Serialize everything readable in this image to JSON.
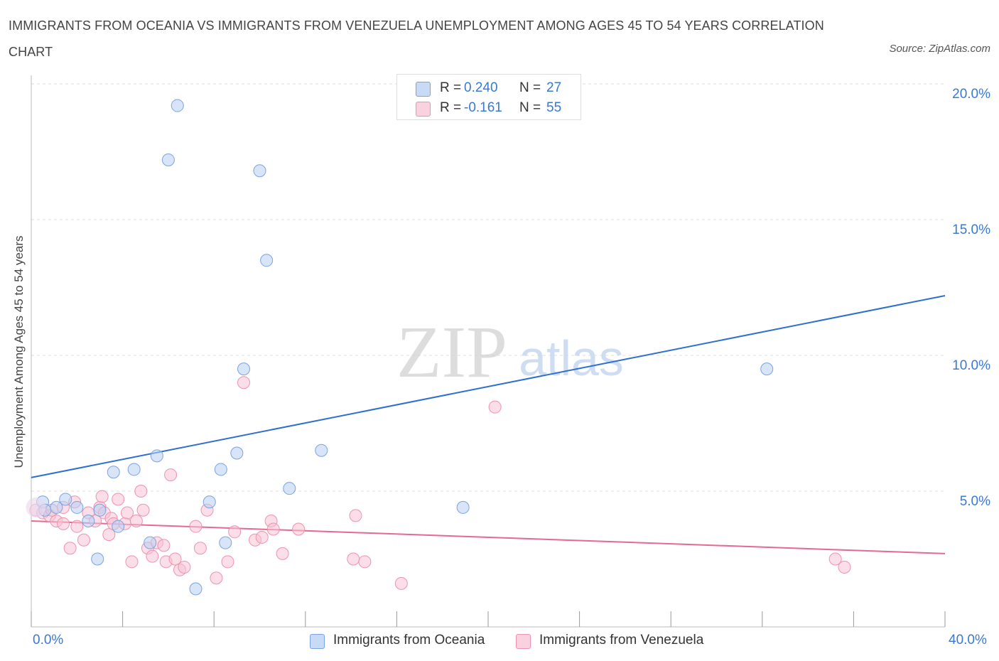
{
  "header": {
    "title": "IMMIGRANTS FROM OCEANIA VS IMMIGRANTS FROM VENEZUELA UNEMPLOYMENT AMONG AGES 45 TO 54 YEARS CORRELATION CHART",
    "source": "Source: ZipAtlas.com"
  },
  "watermark": {
    "zip": "ZIP",
    "atlas": "atlas"
  },
  "stats": {
    "oceania": {
      "r_label": "R =",
      "r_value": "0.240",
      "n_label": "N =",
      "n_value": "27"
    },
    "venezuela": {
      "r_label": "R =",
      "r_value": "-0.161",
      "n_label": "N =",
      "n_value": "55"
    }
  },
  "colors": {
    "oceania_fill": "#b8d0f4",
    "oceania_stroke": "#7aa3e0",
    "oceania_line": "#2f6fd0",
    "venezuela_fill": "#f8c3d3",
    "venezuela_stroke": "#ec93ad",
    "venezuela_line": "#e46a92",
    "tick_label": "#3a78d4"
  },
  "chart_data": {
    "type": "scatter",
    "title": "IMMIGRANTS FROM OCEANIA VS IMMIGRANTS FROM VENEZUELA UNEMPLOYMENT AMONG AGES 45 TO 54 YEARS CORRELATION CHART",
    "xlabel": "",
    "ylabel": "Unemployment Among Ages 45 to 54 years",
    "xlim": [
      0,
      40
    ],
    "ylim": [
      0,
      20
    ],
    "x_tick_labels": [
      "0.0%",
      "40.0%"
    ],
    "y_ticks": [
      5,
      10,
      15,
      20
    ],
    "y_tick_labels": [
      "5.0%",
      "10.0%",
      "15.0%",
      "20.0%"
    ],
    "grid": true,
    "legend_position": "bottom-center",
    "series": [
      {
        "name": "Immigrants from Oceania",
        "r": 0.24,
        "n": 27,
        "trend": {
          "x": [
            0,
            40
          ],
          "y": [
            5.5,
            12.2
          ]
        },
        "points": [
          [
            0.5,
            4.6
          ],
          [
            0.6,
            4.3
          ],
          [
            1.1,
            4.4
          ],
          [
            1.5,
            4.7
          ],
          [
            2.0,
            4.4
          ],
          [
            2.5,
            3.9
          ],
          [
            2.9,
            2.5
          ],
          [
            3.6,
            5.7
          ],
          [
            3.0,
            4.3
          ],
          [
            3.8,
            3.7
          ],
          [
            4.5,
            5.8
          ],
          [
            5.2,
            3.1
          ],
          [
            5.5,
            6.3
          ],
          [
            6.0,
            17.2
          ],
          [
            6.4,
            19.2
          ],
          [
            7.2,
            1.4
          ],
          [
            7.8,
            4.6
          ],
          [
            8.3,
            5.8
          ],
          [
            8.5,
            3.1
          ],
          [
            9.0,
            6.4
          ],
          [
            9.3,
            9.5
          ],
          [
            10.0,
            16.8
          ],
          [
            10.3,
            13.5
          ],
          [
            11.3,
            5.1
          ],
          [
            12.7,
            6.5
          ],
          [
            18.9,
            4.4
          ],
          [
            32.2,
            9.5
          ]
        ]
      },
      {
        "name": "Immigrants from Venezuela",
        "r": -0.161,
        "n": 55,
        "trend": {
          "x": [
            0,
            40
          ],
          "y": [
            3.9,
            2.7
          ]
        },
        "points": [
          [
            0.2,
            4.3
          ],
          [
            0.5,
            4.2
          ],
          [
            0.8,
            4.1
          ],
          [
            1.1,
            3.9
          ],
          [
            1.4,
            3.8
          ],
          [
            1.7,
            2.9
          ],
          [
            1.9,
            4.6
          ],
          [
            2.0,
            3.7
          ],
          [
            2.3,
            3.2
          ],
          [
            2.5,
            4.2
          ],
          [
            2.8,
            3.9
          ],
          [
            3.0,
            4.4
          ],
          [
            3.1,
            4.8
          ],
          [
            3.2,
            4.2
          ],
          [
            3.4,
            3.4
          ],
          [
            3.5,
            4.0
          ],
          [
            3.6,
            3.8
          ],
          [
            3.8,
            4.7
          ],
          [
            4.1,
            3.8
          ],
          [
            4.2,
            4.2
          ],
          [
            4.4,
            2.4
          ],
          [
            4.6,
            3.9
          ],
          [
            4.8,
            5.0
          ],
          [
            4.9,
            4.3
          ],
          [
            5.1,
            2.9
          ],
          [
            5.3,
            2.6
          ],
          [
            5.5,
            3.1
          ],
          [
            5.8,
            3.0
          ],
          [
            5.9,
            2.4
          ],
          [
            6.1,
            5.6
          ],
          [
            6.3,
            2.5
          ],
          [
            6.5,
            2.1
          ],
          [
            6.7,
            2.2
          ],
          [
            7.2,
            3.7
          ],
          [
            7.4,
            2.9
          ],
          [
            7.7,
            4.3
          ],
          [
            8.1,
            1.8
          ],
          [
            8.6,
            2.4
          ],
          [
            8.9,
            3.5
          ],
          [
            9.3,
            9.0
          ],
          [
            9.8,
            3.2
          ],
          [
            10.1,
            3.3
          ],
          [
            10.5,
            3.9
          ],
          [
            10.6,
            3.6
          ],
          [
            11.0,
            2.7
          ],
          [
            11.7,
            3.6
          ],
          [
            14.2,
            4.1
          ],
          [
            14.1,
            2.5
          ],
          [
            14.6,
            2.4
          ],
          [
            16.2,
            1.6
          ],
          [
            20.3,
            8.1
          ],
          [
            35.2,
            2.5
          ],
          [
            35.6,
            2.2
          ],
          [
            0.9,
            4.3
          ],
          [
            1.4,
            4.4
          ]
        ]
      }
    ]
  },
  "legend": {
    "oceania": "Immigrants from Oceania",
    "venezuela": "Immigrants from Venezuela"
  }
}
